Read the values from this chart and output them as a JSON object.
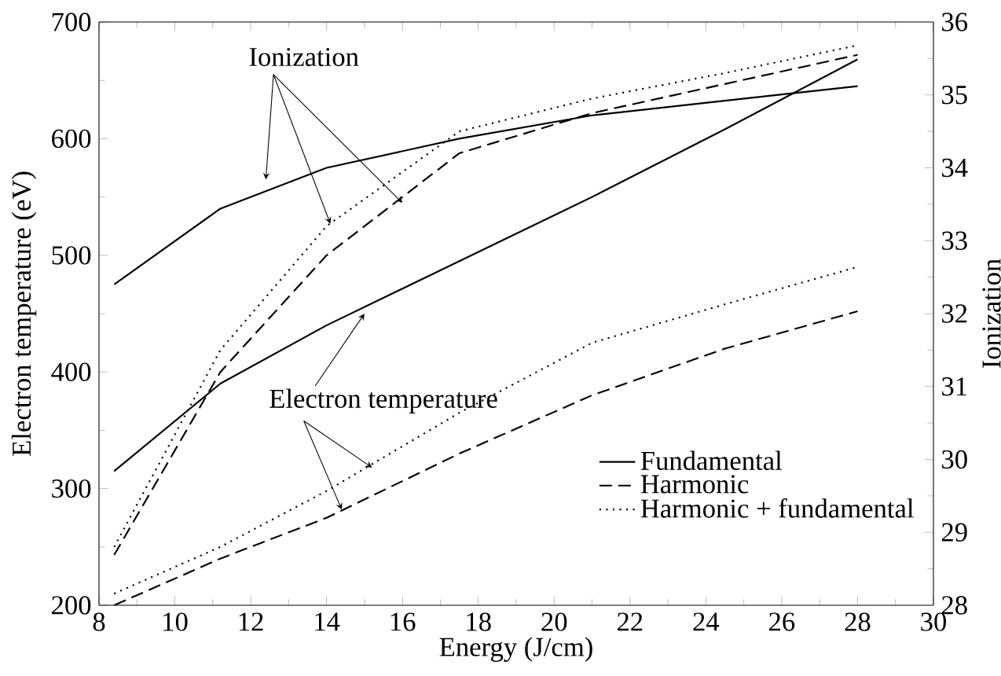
{
  "chart_data": {
    "type": "line",
    "xlabel": "Energy (J/cm)",
    "ylabel": "Electron temperature (eV)",
    "y2label": "Ionization",
    "x": [
      8.4,
      11.2,
      14,
      17.5,
      21,
      24.5,
      28
    ],
    "xlim": [
      8,
      30
    ],
    "xticks": [
      8,
      10,
      12,
      14,
      16,
      18,
      20,
      22,
      24,
      26,
      28,
      30
    ],
    "ylim": [
      200,
      700
    ],
    "yticks": [
      200,
      300,
      400,
      500,
      600,
      700
    ],
    "y2lim": [
      28,
      36
    ],
    "y2ticks": [
      28,
      29,
      30,
      31,
      32,
      33,
      34,
      35,
      36
    ],
    "legend": "bottom right",
    "series": [
      {
        "name": "Fundamental",
        "color": "#000000",
        "line_style": "solid",
        "values": [
          315,
          390,
          440,
          495,
          550,
          608,
          668
        ]
      },
      {
        "name": "Harmonic",
        "color": "#000000",
        "line_style": "dashed",
        "values": [
          200,
          240,
          275,
          330,
          380,
          420,
          452
        ]
      },
      {
        "name": "Harmonic + fundamental",
        "color": "#000000",
        "line_style": "dotted",
        "values": [
          210,
          250,
          298,
          365,
          425,
          458,
          490
        ]
      },
      {
        "color": "#000000",
        "line_style": "solid",
        "axis": "y2",
        "values": [
          32.4,
          33.44,
          34.0,
          34.4,
          34.72,
          34.92,
          35.12
        ]
      },
      {
        "color": "#000000",
        "line_style": "dashed",
        "axis": "y2",
        "values": [
          28.69,
          31.2,
          32.8,
          34.2,
          34.75,
          35.15,
          35.55
        ]
      },
      {
        "color": "#000000",
        "line_style": "dotted",
        "axis": "y2",
        "values": [
          28.8,
          31.5,
          33.2,
          34.5,
          34.95,
          35.3,
          35.68
        ]
      }
    ],
    "annotations": [
      {
        "text": "Ionization",
        "x": 14.1,
        "y": 527
      },
      {
        "text": "Electron temperature",
        "x": 15.2,
        "y": 318
      }
    ]
  }
}
